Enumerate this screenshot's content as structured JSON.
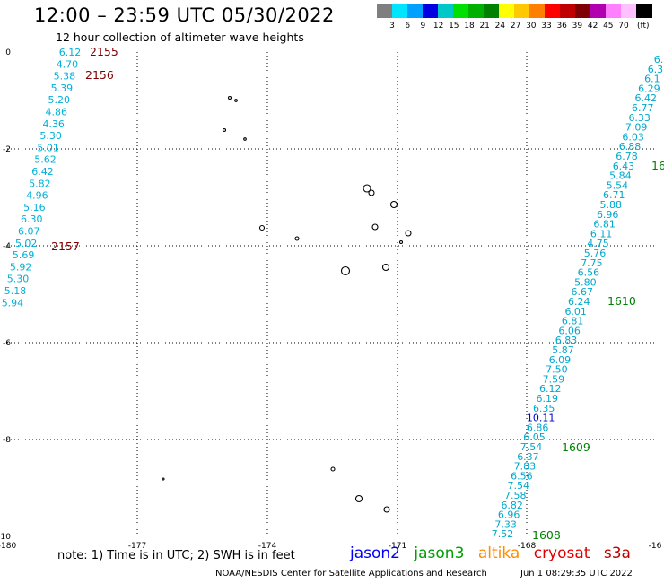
{
  "header": {
    "title": "12:00 – 23:59 UTC 05/30/2022",
    "subtitle": "12 hour collection of altimeter wave heights"
  },
  "colorbar": {
    "colors": [
      "#7f7f7f",
      "#00e5ff",
      "#00a0ff",
      "#0000e0",
      "#00c8c8",
      "#00e000",
      "#00b000",
      "#008000",
      "#ffff00",
      "#ffc800",
      "#ff8000",
      "#ff0000",
      "#c00000",
      "#800000",
      "#b000b0",
      "#ff80ff",
      "#ffc0ff",
      "#000000"
    ],
    "labels": [
      "3",
      "6",
      "9",
      "12",
      "15",
      "18",
      "21",
      "24",
      "27",
      "30",
      "33",
      "36",
      "39",
      "42",
      "45",
      "70"
    ],
    "unit": "(ft)"
  },
  "axes": {
    "x_ticks": [
      "-180",
      "-177",
      "-174",
      "-171",
      "-168",
      "-16"
    ],
    "y_ticks": [
      "0",
      "-2",
      "-4",
      "-6",
      "-8",
      "-10"
    ]
  },
  "tracks": {
    "left_cyan": [
      "6.12",
      "4.70",
      "5.38",
      "5.39",
      "5.20",
      "4.86",
      "4.36",
      "5.30",
      "5.01",
      "5.62",
      "6.42",
      "5.82",
      "4.96",
      "5.16",
      "6.30",
      "6.07",
      "5.02",
      "5.69",
      "5.92",
      "5.30",
      "5.18",
      "5.94"
    ],
    "right_cyan": [
      "6.",
      "6.3",
      "6.1",
      "6.29",
      "6.42",
      "6.77",
      "6.33",
      "7.09",
      "6.03",
      "6.88",
      "6.78",
      "6.43",
      "5.84",
      "5.54",
      "6.71",
      "5.88",
      "6.96",
      "6.81",
      "6.11",
      "4.75",
      "5.76",
      "7.75",
      "6.56",
      "5.80",
      "6.67",
      "6.24",
      "6.01",
      "6.81",
      "6.06",
      "6.83",
      "5.87",
      "6.09",
      "7.50",
      "7.59",
      "6.12",
      "6.19",
      "6.35",
      "10.11",
      "6.86",
      "6.05",
      "7.54",
      "6.37",
      "7.83",
      "6.56",
      "7.54",
      "7.58",
      "6.82",
      "6.96",
      "7.33",
      "7.52"
    ],
    "time_labels": [
      "2155",
      "2156",
      "2157",
      "16",
      "1610",
      "1609",
      "1608"
    ]
  },
  "footer": {
    "note": "note:  1) Time is in UTC; 2) SWH is in feet",
    "legend": [
      "jason2",
      "jason3",
      "altika",
      "cryosat",
      "s3a"
    ],
    "legend_colors": [
      "#0000ff",
      "#00a000",
      "#ff8c00",
      "#e00000",
      "#c00000"
    ],
    "credit": "NOAA/NESDIS Center for Satellite Applications and Research",
    "timestamp": "Jun  1 08:29:35 UTC 2022"
  }
}
